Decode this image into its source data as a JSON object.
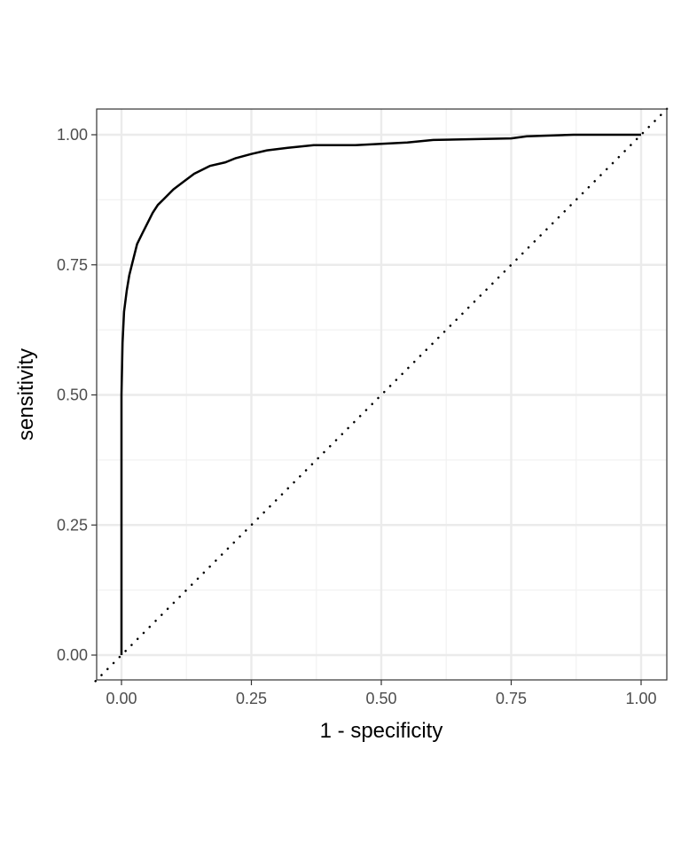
{
  "chart_data": {
    "type": "line",
    "title": "",
    "xlabel": "1 - specificity",
    "ylabel": "sensitivity",
    "xlim": [
      -0.05,
      1.05
    ],
    "ylim": [
      -0.05,
      1.05
    ],
    "x_ticks": [
      0.0,
      0.25,
      0.5,
      0.75,
      1.0
    ],
    "y_ticks": [
      0.0,
      0.25,
      0.5,
      0.75,
      1.0
    ],
    "x_tick_labels": [
      "0.00",
      "0.25",
      "0.50",
      "0.75",
      "1.00"
    ],
    "y_tick_labels": [
      "0.00",
      "0.25",
      "0.50",
      "0.75",
      "1.00"
    ],
    "grid": true,
    "legend": "none",
    "series": [
      {
        "name": "ROC curve",
        "style": "solid",
        "color": "#000000",
        "x": [
          0.0,
          0.0,
          0.002,
          0.005,
          0.01,
          0.015,
          0.02,
          0.03,
          0.04,
          0.05,
          0.06,
          0.07,
          0.08,
          0.1,
          0.12,
          0.14,
          0.17,
          0.2,
          0.22,
          0.25,
          0.28,
          0.32,
          0.37,
          0.45,
          0.55,
          0.6,
          0.75,
          0.78,
          0.87,
          1.0
        ],
        "y": [
          0.0,
          0.5,
          0.6,
          0.66,
          0.7,
          0.73,
          0.75,
          0.79,
          0.81,
          0.83,
          0.85,
          0.865,
          0.875,
          0.895,
          0.91,
          0.925,
          0.94,
          0.947,
          0.955,
          0.963,
          0.97,
          0.975,
          0.98,
          0.98,
          0.985,
          0.99,
          0.993,
          0.997,
          1.0,
          1.0
        ]
      },
      {
        "name": "chance line",
        "style": "dotted",
        "color": "#000000",
        "x": [
          -0.05,
          1.05
        ],
        "y": [
          -0.05,
          1.05
        ]
      }
    ]
  },
  "colors": {
    "background": "#ffffff",
    "panel_border": "#333333",
    "grid_major": "#ebebeb",
    "grid_minor": "#f2f2f2",
    "line": "#000000",
    "tick_text": "#4d4d4d"
  }
}
